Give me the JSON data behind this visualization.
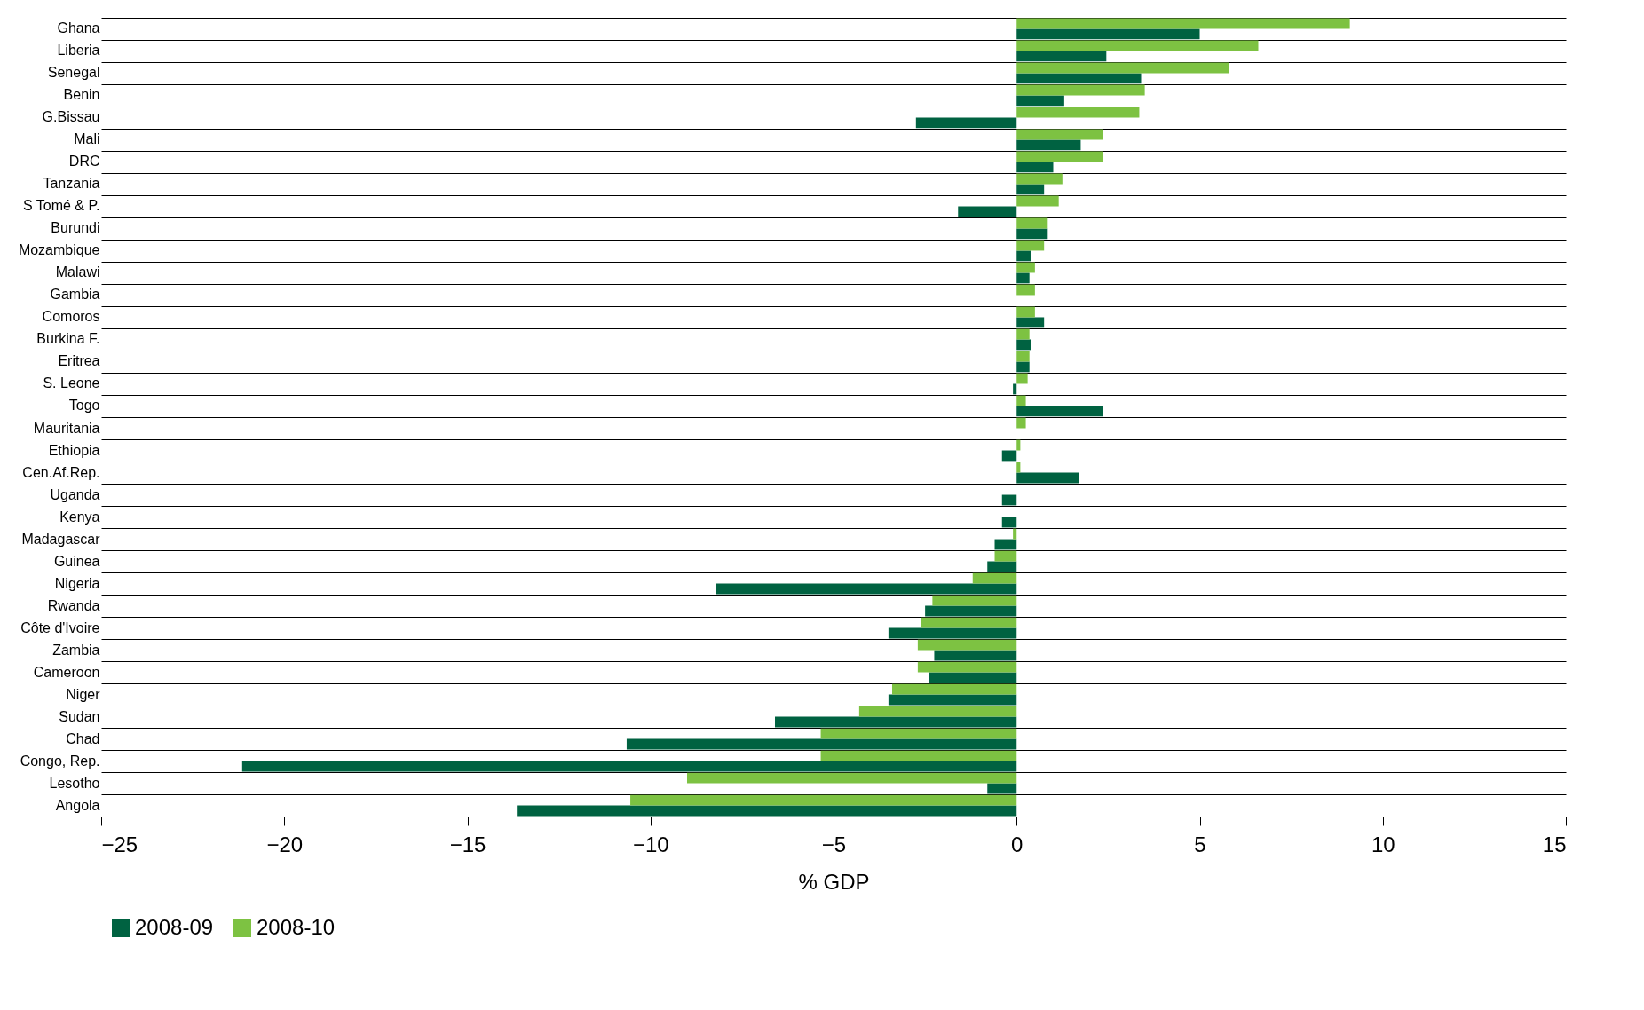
{
  "chart_data": {
    "type": "bar",
    "orientation": "horizontal",
    "xlabel": "% GDP",
    "categories": [
      "Ghana",
      "Liberia",
      "Senegal",
      "Benin",
      "G.Bissau",
      "Mali",
      "DRC",
      "Tanzania",
      "S Tomé & P.",
      "Burundi",
      "Mozambique",
      "Malawi",
      "Gambia",
      "Comoros",
      "Burkina F.",
      "Eritrea",
      "S. Leone",
      "Togo",
      "Mauritania",
      "Ethiopia",
      "Cen.Af.Rep.",
      "Uganda",
      "Kenya",
      "Madagascar",
      "Guinea",
      "Nigeria",
      "Rwanda",
      "Côte d'Ivoire",
      "Zambia",
      "Cameroon",
      "Niger",
      "Sudan",
      "Chad",
      "Congo, Rep.",
      "Lesotho",
      "Angola"
    ],
    "series": [
      {
        "name": "2008-09",
        "color": "#006241",
        "values": [
          5.0,
          2.45,
          3.4,
          1.3,
          -2.75,
          1.75,
          1.0,
          0.75,
          -1.6,
          0.85,
          0.4,
          0.35,
          0,
          0.75,
          0.4,
          0.35,
          -0.1,
          2.35,
          0,
          -0.4,
          1.7,
          -0.4,
          -0.4,
          -0.6,
          -0.8,
          -8.2,
          -2.5,
          -3.5,
          -2.25,
          -2.4,
          -3.5,
          -6.6,
          -10.65,
          -21.15,
          -0.8,
          -13.65
        ]
      },
      {
        "name": "2008-10",
        "color": "#7dc242",
        "values": [
          9.1,
          6.6,
          5.8,
          3.5,
          3.35,
          2.35,
          2.35,
          1.25,
          1.15,
          0.85,
          0.75,
          0.5,
          0.5,
          0.5,
          0.35,
          0.35,
          0.3,
          0.25,
          0.25,
          0.1,
          0.1,
          0,
          0,
          -0.1,
          -0.6,
          -1.2,
          -2.3,
          -2.6,
          -2.7,
          -2.7,
          -3.4,
          -4.3,
          -5.35,
          -5.35,
          -9.0,
          -10.55
        ]
      }
    ],
    "xlim": [
      -25,
      15
    ],
    "xticks": [
      -25,
      -20,
      -15,
      -10,
      -5,
      0,
      5,
      10,
      15
    ],
    "grid": "y",
    "legend": "bottom"
  }
}
